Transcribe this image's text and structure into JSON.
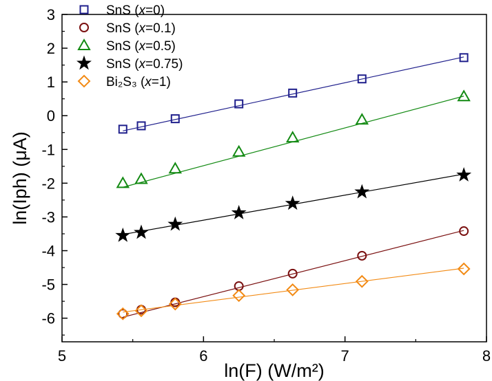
{
  "chart_data": {
    "type": "scatter",
    "title": "",
    "xlabel": "ln(F) (W/m²)",
    "ylabel": "ln(Iph) (μA)",
    "xlim": [
      5,
      8
    ],
    "ylim": [
      -6.7,
      3
    ],
    "xticks": [
      "5",
      "6",
      "7",
      "8"
    ],
    "yticks": [
      "3",
      "2",
      "1",
      "0",
      "-1",
      "-2",
      "-3",
      "-4",
      "-5",
      "-6"
    ],
    "x": [
      5.43,
      5.56,
      5.8,
      6.25,
      6.63,
      7.12,
      7.84
    ],
    "series": [
      {
        "name": "SnS (x=0)",
        "marker": "square",
        "color": "#1f1f8c",
        "values": [
          -0.4,
          -0.3,
          -0.09,
          0.35,
          0.67,
          1.09,
          1.72
        ],
        "fit": [
          -0.45,
          1.74
        ]
      },
      {
        "name": "SnS (x=0.1)",
        "marker": "circle",
        "color": "#7a1010",
        "values": [
          -5.87,
          -5.75,
          -5.53,
          -5.05,
          -4.68,
          -4.15,
          -3.42
        ],
        "fit": [
          -5.97,
          -3.4
        ]
      },
      {
        "name": "SnS (x=0.5)",
        "marker": "triangle",
        "color": "#138a13",
        "values": [
          -2.0,
          -1.88,
          -1.57,
          -1.07,
          -0.65,
          -0.12,
          0.57
        ],
        "fit": [
          -2.12,
          0.58
        ]
      },
      {
        "name": "SnS (x=0.75)",
        "marker": "star",
        "color": "#000000",
        "values": [
          -3.55,
          -3.46,
          -3.22,
          -2.88,
          -2.6,
          -2.26,
          -1.76
        ],
        "fit": [
          -3.52,
          -1.73
        ]
      },
      {
        "name": "Bi2S3 (x=1)",
        "marker": "diamond",
        "color": "#f28a14",
        "values": [
          -5.87,
          -5.78,
          -5.58,
          -5.33,
          -5.16,
          -4.91,
          -4.54
        ],
        "fit": [
          -5.82,
          -4.52
        ]
      }
    ],
    "legend": {
      "position": "top-left",
      "entries": [
        {
          "prefix": "SnS (",
          "var": "x",
          "value": "=0)"
        },
        {
          "prefix": "SnS (",
          "var": "x",
          "value": "=0.1)"
        },
        {
          "prefix": "SnS (",
          "var": "x",
          "value": "=0.5)"
        },
        {
          "prefix": "SnS (",
          "var": "x",
          "value": "=0.75)"
        },
        {
          "prefix": "Bi₂S₃ (",
          "var": "x",
          "value": "=1)"
        }
      ]
    }
  }
}
